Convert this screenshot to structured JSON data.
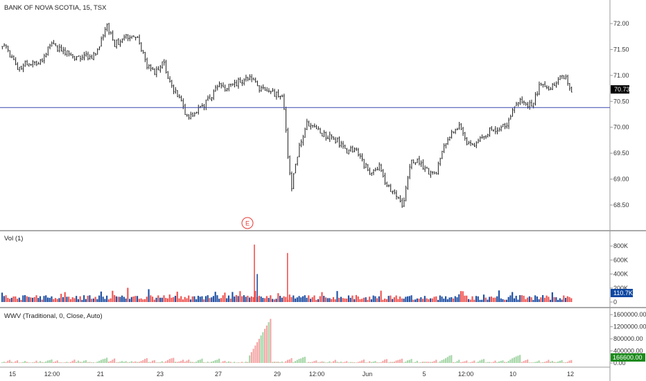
{
  "header": {
    "symbol_title": "BANK OF NOVA SCOTIA, 15, TSX"
  },
  "price_panel": {
    "last_price_label": "70.73",
    "event_marker": "E",
    "colors": {
      "candle": "#1b1b1b",
      "hline": "#3949ab",
      "badge_bg": "#000000",
      "badge_fg": "#ffffff"
    }
  },
  "volume_panel": {
    "title": "Vol (1)",
    "last_value_label": "110.7K",
    "colors": {
      "up": "#1e4fa3",
      "down": "#ef5350",
      "badge_bg": "#0d47a1"
    }
  },
  "wwv_panel": {
    "title": "WWV (Traditional, 0, Close, Auto)",
    "last_value_label": "166600.00",
    "colors": {
      "up": "#a5d6a7",
      "down": "#f4a6a6",
      "badge_bg": "#1b8a1b"
    }
  },
  "axis": {
    "price_ticks": [
      "72.00",
      "71.50",
      "71.00",
      "70.50",
      "70.00",
      "69.50",
      "69.00",
      "68.50"
    ],
    "volume_ticks": [
      "800K",
      "600K",
      "400K",
      "200K",
      "0"
    ],
    "wwv_ticks": [
      "1600000.00",
      "1200000.00",
      "800000.00",
      "400000.00",
      "0.00"
    ],
    "date_labels": [
      "15",
      "12:00",
      "21",
      "23",
      "27",
      "29",
      "12:00",
      "Jun",
      "5",
      "12:00",
      "10",
      "12"
    ]
  },
  "chart_data": [
    {
      "type": "candlestick",
      "title": "BANK OF NOVA SCOTIA, 15, TSX",
      "x_labels": [
        "15",
        "12:00",
        "21",
        "23",
        "27",
        "29",
        "12:00",
        "Jun",
        "5",
        "12:00",
        "10",
        "12"
      ],
      "ylim": [
        68.2,
        72.4
      ],
      "y_ticks": [
        68.5,
        69.0,
        69.5,
        70.0,
        70.5,
        71.0,
        71.5,
        72.0
      ],
      "horizontal_line": 70.38,
      "last_value": 70.73,
      "close_path": [
        71.6,
        71.4,
        71.1,
        71.25,
        71.2,
        71.3,
        71.6,
        71.5,
        71.45,
        71.3,
        71.4,
        71.35,
        71.5,
        71.95,
        71.6,
        71.7,
        71.75,
        71.7,
        71.2,
        71.05,
        71.3,
        70.8,
        70.6,
        70.2,
        70.3,
        70.4,
        70.6,
        70.8,
        70.75,
        70.85,
        70.9,
        70.95,
        70.75,
        70.7,
        70.65,
        70.6,
        68.8,
        69.6,
        70.1,
        70.0,
        69.85,
        69.8,
        69.7,
        69.5,
        69.6,
        69.3,
        69.1,
        69.25,
        68.85,
        68.7,
        68.5,
        69.4,
        69.3,
        69.15,
        69.05,
        69.6,
        69.9,
        70.0,
        69.7,
        69.65,
        69.8,
        70.0,
        69.95,
        70.1,
        70.45,
        70.5,
        70.4,
        70.8,
        70.75,
        70.85,
        71.0,
        70.7
      ]
    },
    {
      "type": "bar",
      "title": "Vol (1)",
      "ylim": [
        0,
        900000
      ],
      "y_ticks": [
        0,
        200000,
        400000,
        600000,
        800000
      ],
      "last_value": 110700,
      "spikes": [
        {
          "x_frac": 0.442,
          "value": 820000,
          "dir": "down"
        },
        {
          "x_frac": 0.5,
          "value": 700000,
          "dir": "down"
        },
        {
          "x_frac": 0.447,
          "value": 400000,
          "dir": "up"
        }
      ]
    },
    {
      "type": "bar",
      "title": "WWV (Traditional, 0, Close, Auto)",
      "ylim": [
        0,
        1650000
      ],
      "y_ticks": [
        0,
        400000,
        800000,
        1200000,
        1600000
      ],
      "last_value": 166600
    }
  ]
}
